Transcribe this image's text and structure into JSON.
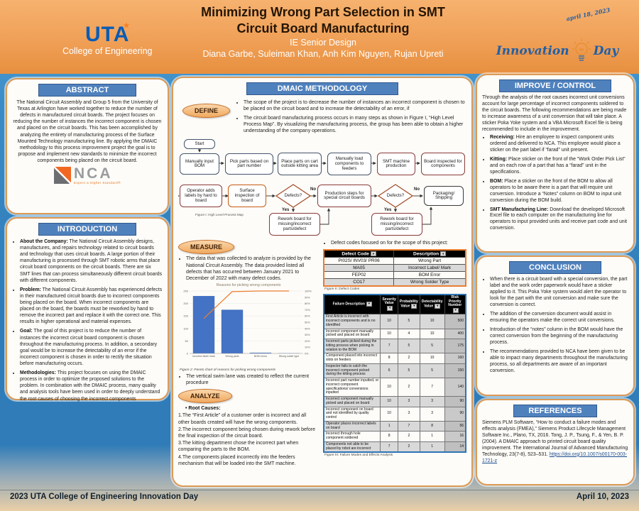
{
  "colors": {
    "header_orange": "#f0a057",
    "section_blue": "#4f81bd",
    "panel_border": "#dd9a55",
    "bar_blue": "#4472c4",
    "line_orange": "#ed7d31"
  },
  "header": {
    "title_line1": "Minimizing Wrong Part Selection in SMT",
    "title_line2": "Circuit Board Manufacturing",
    "subtitle": "IE Senior Design",
    "authors": "Diana Garbe, Suleiman Khan, Anh Kim Nguyen, Rujan Upreti",
    "uta": {
      "acronym": "UTA",
      "college": "College of Engineering"
    },
    "innovation": {
      "word1": "Innovation",
      "word2": "Day",
      "date_note": "april 18, 2023",
      "tagline": "COLLEGE OF ENGINEERING"
    }
  },
  "left": {
    "abstract": {
      "title": "ABSTRACT",
      "body": "The National Circuit Assembly and Group 5 from the University of Texas at Arlington have worked together to reduce the number of defects in manufactured circuit boards. The project focuses on reducing the number of instances the incorrect component is chosen and placed on the circuit boards. This has been accomplished by analyzing the entirety of manufacturing process of the Surface Mounted Technology manufacturing line. By applying the DMAIC methodology to this process improvement project the goal is to propose and implement new standards to minimize the incorrect components being placed on the circuit board.",
      "nca": {
        "text": "NCA",
        "tagline": "Expect a Higher Standard®"
      }
    },
    "introduction": {
      "title": "INTRODUCTION",
      "bullets": [
        {
          "label": "About the Company:",
          "text": " The National Circuit Assembly designs, manufactures, and repairs technology related to circuit boards and technology that uses circuit boards. A large portion of their manufacturing is processed through SMT robotic arms that place circuit board components on the circuit boards. There are six SMT lines that can process simultaneously different circuit boards with different components."
        },
        {
          "label": "Problem:",
          "text": " The National Circuit Assembly has experienced defects in their manufactured circuit boards due to incorrect components being placed on the board. When incorrect components are placed on the board, the boards must be reworked by hand to remove the incorrect part and replace it with the correct one. This results in higher operational and material expenses."
        },
        {
          "label": "Goal:",
          "text": " The goal of this project is to reduce the number of instances the incorrect circuit board component is chosen throughout the manufacturing process. In addition, a secondary goal would be to increase the detectability of an error if the incorrect component is chosen in order to rectify the situation before manufacturing occurs."
        },
        {
          "label": "Methodologies:",
          "text": " This project focuses on using the DMAIC process in order to optimize the proposed solutions to the problem. In combination with the DMAIC process, many quality and analysis tools have been used in order to deeply understand the root causes of choosing the incorrect components"
        }
      ]
    }
  },
  "middle": {
    "title": "DMAIC METHODOLOGY",
    "define": {
      "label": "DEFINE",
      "bullets": [
        "The scope of the project is to decrease the number of instances an incorrect component is chosen to be placed on the circuit board and to increase the detectability of an error, if",
        "The circuit board manufacturing process occurs in many steps as shown in Figure I, “High Level Process Map”. By visualizing the manufacturing process, the group has been able to obtain a higher understanding of the company operations."
      ]
    },
    "flowchart": {
      "caption": "Figure I: High Level Process Map",
      "start": "Start",
      "row1": [
        "Manually input BOM",
        "Pick parts based on part number",
        "Place parts on cart outside kitting area",
        "Manually load components to feeders",
        "SMT machine production",
        "Board inspected for components"
      ],
      "row2": [
        "Operator adds labels by hard to board",
        "Surface inspection of board",
        "Defects?",
        "Production steps for special circuit boards",
        "Defects?",
        "Packaging/ Shipping"
      ],
      "rework1": "Rework board for missing/incorrect parts/defect",
      "rework2": "Rework board for missing/incorrect parts/defect",
      "yes": "Yes",
      "no": "No"
    },
    "measure": {
      "label": "MEASURE",
      "bullet1": "The data that was collected to analyze is provided by the National Circuit Assembly. The data provided listed all defects that has occurred between January 2021 to December of 2022 with many defect codes.",
      "swimlane_bullet": "The vertical swim lane was created to reflect the current procedure",
      "defect_bullet": "Defect codes focused on for the scope of this project:"
    },
    "figure2_caption": "Figure 2: Pareto chart of reasons for picking wrong components",
    "analyze": {
      "label": "ANALYZE",
      "root_title": "Root Causes:",
      "items": [
        "1.The “First Article” of a customer order is incorrect and all other boards created will have the wrong components.",
        "2.The incorrect component being chosen during rework before the final inspection of the circuit board.",
        "3.The kitting department chose the incorrect part when comparing the parts to the BOM.",
        "4.The components placed incorrectly into the feeders mechanism that will be loaded into the SMT machine."
      ]
    },
    "defect_table": {
      "headers": [
        "Defect Code",
        "Description"
      ],
      "rows": [
        [
          "PI02S/ INV03/ PR06",
          "Wrong Part"
        ],
        [
          "MA05",
          "Incorrect Label/ Mark"
        ],
        [
          "FEP02",
          "BOM Error"
        ],
        [
          "CO17",
          "Wrong Solder Type"
        ]
      ],
      "caption": "Figure II: Defect Codes"
    },
    "fmea": {
      "headers": [
        "Failure Description",
        "Severity Value",
        "Probability Value",
        "Detectability Value",
        "Risk Priority Number"
      ],
      "rows": [
        [
          "First Article is incorrect with incorrect components and is no identified",
          "10",
          "5",
          "10",
          "500"
        ],
        [
          "Incorrect component manually picked and placed on board",
          "10",
          "4",
          "10",
          "400"
        ],
        [
          "Incorrect parts picked during the kitting process when picking in relation to the BOM",
          "7",
          "5",
          "5",
          "175"
        ],
        [
          "Component placed into incorrect slots on feeders",
          "8",
          "2",
          "10",
          "160"
        ],
        [
          "Inspector fails to catch the incorrect component picked during the kitting process",
          "6",
          "5",
          "5",
          "150"
        ],
        [
          "Incorrect part number inputted, or incorrect component specifications/ conversions inputted",
          "10",
          "2",
          "7",
          "140"
        ],
        [
          "Incorrect component manually picked and placed on board",
          "10",
          "3",
          "3",
          "90"
        ],
        [
          "Incorrect component on board and not identified by quality control",
          "10",
          "3",
          "3",
          "90"
        ],
        [
          "Operator places incorrect labels on board",
          "1",
          "7",
          "8",
          "56"
        ],
        [
          "Incorrect through hole component soldered",
          "8",
          "2",
          "1",
          "16"
        ],
        [
          "Components not able to be placed by robot are incorrect",
          "7",
          "2",
          "1",
          "14"
        ]
      ],
      "caption": "Figure III: Failure Modes and Effects Analysis"
    }
  },
  "right": {
    "improve": {
      "title": "IMPROVE / CONTROL",
      "intro": "Through the analysis of the root causes incorrect unit conversions account for large percentage of incorrect components soldered to the circuit boards. The following recommendations are being made to increase awareness of a unit conversion that will take place. A sticker Poka Yoke system and a VBA Microsoft Excel file is being recommended to include in the improvement.",
      "bullets": [
        {
          "label": "Receiving:",
          "text": " Hire an employee to inspect component units ordered and delivered to NCA. This employee would place a sticker on the part label if “farad” unit present."
        },
        {
          "label": "Kitting:",
          "text": " Place sticker on the front of the “Work Order Pick List” and on each row of a part that has a “farad” unit in the specifications."
        },
        {
          "label": "BOM:",
          "text": " Place a sticker on the front of the BOM to allow all operators to be aware there is a part that will require unit conversion. Introduce a “Notes” column on BOM to input unit conversion during the BOM build."
        },
        {
          "label": "SMT Manufacturing Line:",
          "text": " Download the developed Microsoft Excel file to each computer on the manufacturing line for operators to input provided units and receive part code and unit conversion."
        }
      ]
    },
    "conclusion": {
      "title": "CONCLUSION",
      "bullets": [
        "When there is a circuit board with a special conversion, the part label and the work order paperwork would have a sticker applied to it. This Poka Yoke system would alert the operator to look for the part with the unit conversion and make sure the conversion is correct.",
        "The addition of the conversion document would assist in ensuring the operators make the correct unit conversions.",
        "Introduction of the “notes” column in the BOM would have the correct conversion from the beginning of the manufacturing process.",
        "The recommendations provided to NCA have been given to be able to impact many departments throughout the manufacturing process, so all departments are aware of an important conversion."
      ]
    },
    "references": {
      "title": "REFERENCES",
      "ref1": "Siemens PLM Software, “How to conduct a failure modes and effects analysis (FMEA),” Siemens Product Lifecycle Management Software Inc., Plano, TX, 2016.",
      "ref2_text": "Tong, J. P., Tsung, F., & Yen, B. P. (2004). A DMAIC approach to printed circuit board quality improvement. The International Journal of Advanced Manufacturing Technology, 23(7-8), 523–531. ",
      "ref2_link": "https://doi.org/10.1007/s00170-003-1721-z"
    }
  },
  "footer": {
    "left": "2023 UTA College of Engineering Innovation Day",
    "right": "April 10, 2023"
  },
  "chart_data": {
    "type": "bar",
    "subtype": "pareto (bar + cumulative line)",
    "title": "Reasons for picking wrong components",
    "categories": [
      "Incorrect label/ mark",
      "Wrong parts",
      "BOM errors",
      "Wrong solder type"
    ],
    "series": [
      {
        "name": "Defect count",
        "type": "bar",
        "values": [
          230,
          175,
          3,
          1
        ]
      },
      {
        "name": "Cumulative %",
        "type": "line",
        "values": [
          56,
          99,
          100,
          100
        ]
      }
    ],
    "xlabel": "",
    "ylabel": "",
    "ylim": [
      0,
      250
    ],
    "y_ticks": [
      0,
      50,
      100,
      150,
      200,
      250
    ],
    "y2lim": [
      0,
      100
    ],
    "y2_ticks": [
      "0%",
      "10%",
      "20%",
      "30%",
      "40%",
      "50%",
      "60%",
      "70%",
      "80%",
      "90%",
      "100%"
    ],
    "grid": true,
    "legend_position": "none",
    "colors": {
      "bar": "#4472c4",
      "line": "#ed7d31"
    }
  }
}
